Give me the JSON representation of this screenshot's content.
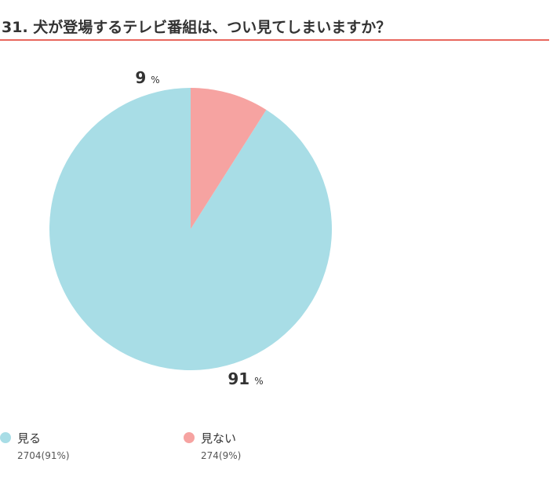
{
  "header": {
    "title": "31. 犬が登場するテレビ番組は、つい見てしまいますか？"
  },
  "chart_data": {
    "type": "pie",
    "title": "31. 犬が登場するテレビ番組は、つい見てしまいますか？",
    "slices": [
      {
        "label": "見る",
        "count": 2704,
        "value": 91,
        "percent_label": "91",
        "legend_value": "2704(91%)",
        "color": "#a8dde6"
      },
      {
        "label": "見ない",
        "count": 274,
        "value": 9,
        "percent_label": "9",
        "legend_value": "274(9%)",
        "color": "#f6a3a1"
      }
    ],
    "percent_unit": "%",
    "legend_position": "bottom-left",
    "start_angle": "12 o'clock, counter-clockwise"
  }
}
